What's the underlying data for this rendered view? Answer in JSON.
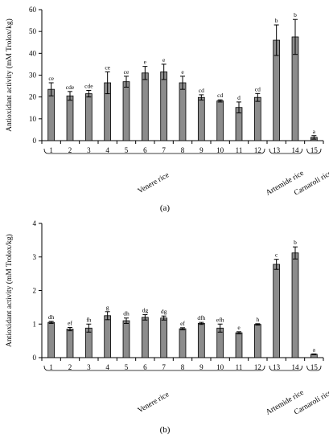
{
  "chart_data": [
    {
      "type": "bar",
      "panel_label": "(a)",
      "ylabel": "Antioxidant activity (mM Trolox/kg)",
      "ylim": [
        0,
        60
      ],
      "yticks": [
        0,
        10,
        20,
        30,
        40,
        50,
        60
      ],
      "categories": [
        "1",
        "2",
        "3",
        "4",
        "5",
        "6",
        "7",
        "8",
        "9",
        "10",
        "11",
        "12",
        "13",
        "14",
        "15"
      ],
      "values": [
        23.5,
        20.5,
        21.5,
        26.5,
        27,
        31,
        31.5,
        26.5,
        19.8,
        18.2,
        15.2,
        19.8,
        46,
        47.5,
        1.5
      ],
      "errors": [
        3,
        2,
        1.5,
        5,
        2.5,
        3,
        3.5,
        3,
        1.2,
        0.5,
        2.5,
        1.8,
        7,
        8,
        0.8
      ],
      "significance": [
        "ce",
        "cde",
        "cde",
        "ce",
        "ce",
        "e",
        "e",
        "e",
        "cd",
        "cd",
        "d",
        "cd",
        "b",
        "b",
        "a"
      ],
      "groups": [
        {
          "label": "Venere rice",
          "from": 0,
          "to": 11
        },
        {
          "label": "Artemide rice",
          "from": 12,
          "to": 13
        },
        {
          "label": "Carnaroli rice",
          "from": 14,
          "to": 14
        }
      ],
      "grid": false
    },
    {
      "type": "bar",
      "panel_label": "(b)",
      "ylabel": "Antioxidant activity (mM Trolox/kg)",
      "ylim": [
        0,
        4
      ],
      "yticks": [
        0,
        1,
        2,
        3,
        4
      ],
      "categories": [
        "1",
        "2",
        "3",
        "4",
        "5",
        "6",
        "7",
        "8",
        "9",
        "10",
        "11",
        "12",
        "13",
        "14",
        "15"
      ],
      "values": [
        1.05,
        0.85,
        0.88,
        1.25,
        1.1,
        1.2,
        1.18,
        0.86,
        1.02,
        0.88,
        0.74,
        0.99,
        2.78,
        3.12,
        0.1
      ],
      "errors": [
        0.03,
        0.05,
        0.12,
        0.12,
        0.08,
        0.08,
        0.06,
        0.03,
        0.03,
        0.12,
        0.03,
        0.02,
        0.15,
        0.18,
        0.01
      ],
      "significance": [
        "dh",
        "ef",
        "fh",
        "g",
        "dh",
        "dg",
        "dg",
        "ef",
        "dfh",
        "efh",
        "e",
        "h",
        "c",
        "b",
        "a"
      ],
      "groups": [
        {
          "label": "Venere rice",
          "from": 0,
          "to": 11
        },
        {
          "label": "Artemide rice",
          "from": 12,
          "to": 13
        },
        {
          "label": "Carnaroli rice",
          "from": 14,
          "to": 14
        }
      ],
      "grid": false
    }
  ]
}
